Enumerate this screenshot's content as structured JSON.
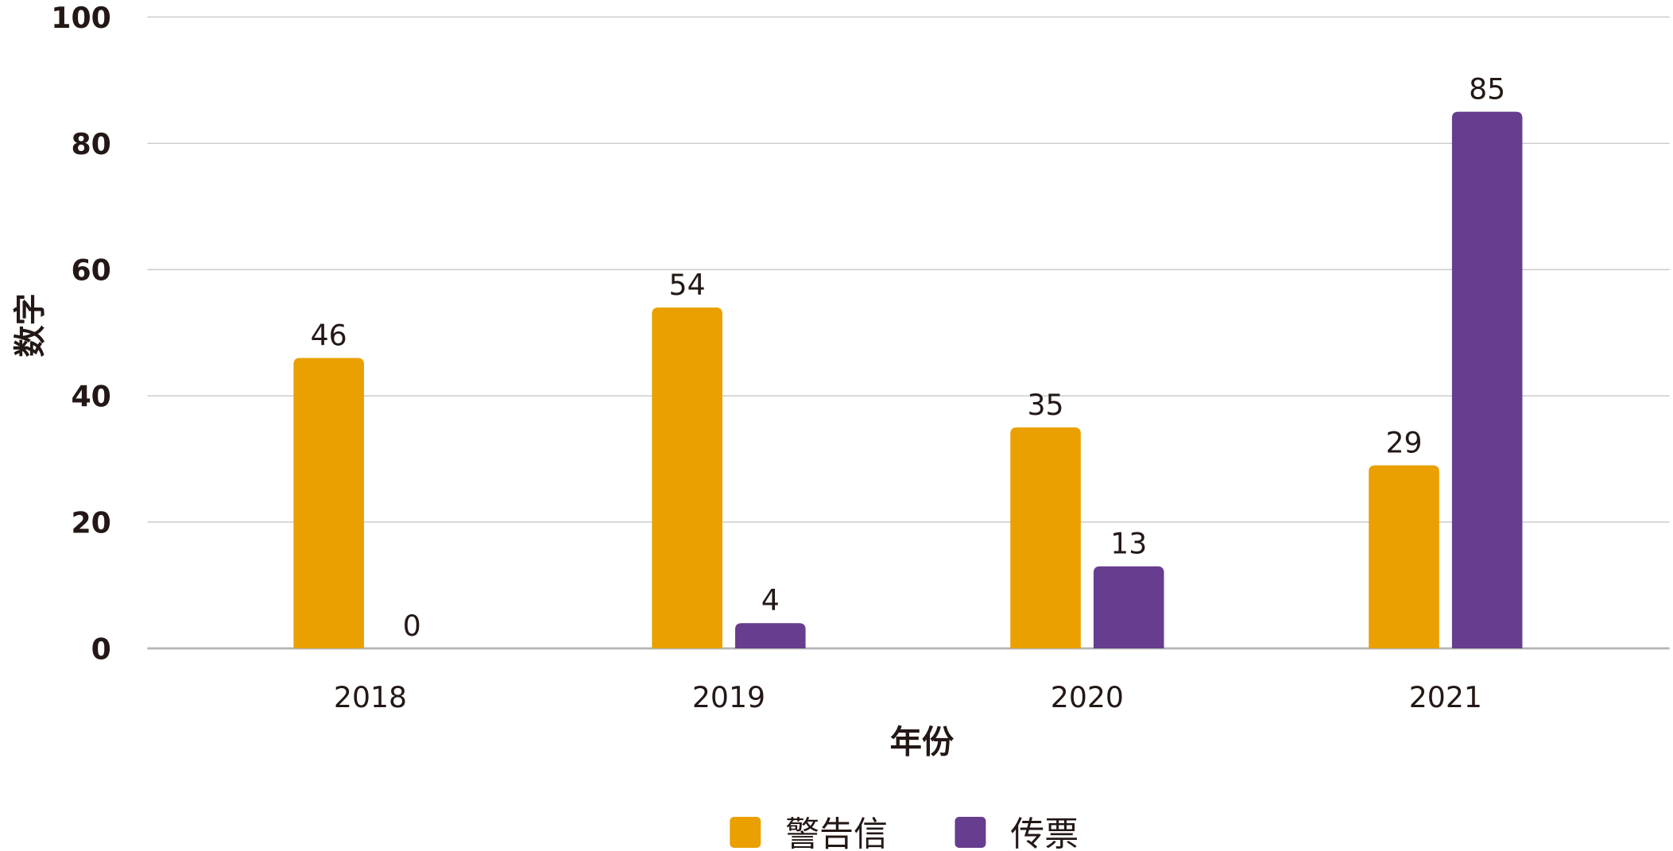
{
  "chart_data": {
    "type": "bar",
    "categories": [
      "2018",
      "2019",
      "2020",
      "2021"
    ],
    "series": [
      {
        "name": "警告信",
        "values": [
          46,
          54,
          35,
          29
        ],
        "color": "#E9A000"
      },
      {
        "name": "传票",
        "values": [
          0,
          4,
          13,
          85
        ],
        "color": "#663D8F"
      }
    ],
    "xlabel": "年份",
    "ylabel": "数字",
    "ylim": [
      0,
      100
    ],
    "yticks": [
      0,
      20,
      40,
      60,
      80,
      100
    ],
    "grid": true,
    "legend": "bottom",
    "data_labels": true
  }
}
